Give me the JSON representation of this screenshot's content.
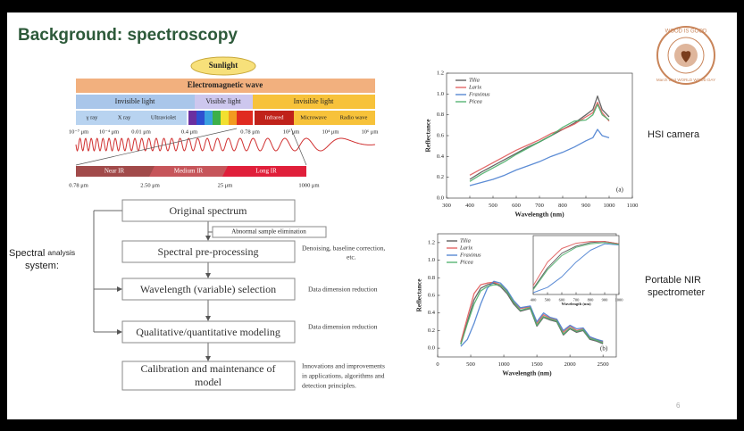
{
  "title": "Background: spectroscopy",
  "logo": {
    "top": "WOOD IS GOOD",
    "bottom": "March 21st WORLD WOOD DAY"
  },
  "spectrum": {
    "source": "Sunlight",
    "band": "Electromagnetic wave",
    "groups": [
      "Invisible light",
      "Visible light",
      "Invisible light"
    ],
    "regions": [
      "γ ray",
      "X ray",
      "Ultraviolet",
      "Infrared",
      "Microwave",
      "Radio wave"
    ],
    "scale": [
      "10⁻⁷ μm",
      "10⁻⁴ μm",
      "0.01 μm",
      "0.4 μm",
      "0.78 μm",
      "10² μm",
      "10⁴ μm",
      "10⁶ μm"
    ],
    "ir_bands": [
      "Near IR",
      "Medium IR",
      "Long IR"
    ],
    "ir_scale": [
      "0.78 μm",
      "2.50 μm",
      "25 μm",
      "1000 μm"
    ]
  },
  "side_label": [
    "Spectral",
    "analysis",
    "system:"
  ],
  "flowchart": {
    "steps": [
      "Original spectrum",
      "Spectral pre-processing",
      "Wavelength (variable) selection",
      "Qualitative/quantitative modeling",
      "Calibration and maintenance of",
      "model"
    ],
    "sub_step": "Abnormal sample elimination",
    "notes": [
      "Denoising, baseline correction,",
      "etc.",
      "Data dimension reduction",
      "Data dimension reduction",
      "Innovations and improvements",
      "in applications, algorithms and",
      "detection principles."
    ]
  },
  "device_labels": [
    "HSI camera",
    "Portable NIR",
    "spectrometer"
  ],
  "page_number": "6",
  "chart_data": [
    {
      "type": "line",
      "xlabel": "Wavelength (nm)",
      "ylabel": "Reflectance",
      "annotation": "(a)",
      "legend": "upper left",
      "xlim": [
        300,
        1100
      ],
      "xticks": [
        300,
        400,
        500,
        600,
        700,
        800,
        900,
        1000,
        1100
      ],
      "ylim": [
        0,
        1.2
      ],
      "yticks": [
        {
          "value": 0,
          "label": "0.0"
        },
        0.2,
        0.4,
        0.6,
        0.8,
        {
          "value": 1,
          "label": "1.0"
        },
        1.2
      ],
      "x": [
        400,
        450,
        500,
        550,
        600,
        650,
        700,
        750,
        800,
        850,
        900,
        930,
        950,
        970,
        1000
      ],
      "series": [
        {
          "name": "Tilia",
          "color": "#555555",
          "values": [
            0.18,
            0.25,
            0.31,
            0.37,
            0.43,
            0.49,
            0.54,
            0.6,
            0.66,
            0.72,
            0.8,
            0.85,
            0.98,
            0.85,
            0.78
          ]
        },
        {
          "name": "Larix",
          "color": "#e05a5a",
          "values": [
            0.22,
            0.28,
            0.34,
            0.4,
            0.46,
            0.51,
            0.56,
            0.62,
            0.66,
            0.71,
            0.78,
            0.82,
            0.92,
            0.82,
            0.74
          ]
        },
        {
          "name": "Fraxinus",
          "color": "#4a7fd0",
          "values": [
            0.12,
            0.15,
            0.18,
            0.22,
            0.27,
            0.31,
            0.35,
            0.4,
            0.44,
            0.49,
            0.55,
            0.58,
            0.66,
            0.6,
            0.58
          ]
        },
        {
          "name": "Picea",
          "color": "#4caf6a",
          "values": [
            0.16,
            0.23,
            0.29,
            0.35,
            0.42,
            0.48,
            0.54,
            0.6,
            0.68,
            0.74,
            0.75,
            0.8,
            0.9,
            0.8,
            0.75
          ]
        }
      ]
    },
    {
      "type": "line",
      "xlabel": "Wavelength (nm)",
      "ylabel": "Reflectance",
      "annotation": "(b)",
      "legend": "upper left",
      "xlim": [
        0,
        2700
      ],
      "xticks": [
        0,
        500,
        1000,
        1500,
        2000,
        2500
      ],
      "ylim": [
        -0.1,
        1.3
      ],
      "yticks": [
        {
          "value": 0,
          "label": "0.0"
        },
        0.2,
        0.4,
        0.6,
        0.8,
        {
          "value": 1,
          "label": "1.0"
        },
        1.2
      ],
      "x": [
        350,
        450,
        550,
        650,
        750,
        850,
        950,
        1050,
        1150,
        1250,
        1400,
        1500,
        1600,
        1700,
        1800,
        1900,
        2000,
        2100,
        2200,
        2300,
        2400,
        2500
      ],
      "series": [
        {
          "name": "Tilia",
          "color": "#555555",
          "values": [
            0.05,
            0.3,
            0.55,
            0.68,
            0.72,
            0.74,
            0.7,
            0.62,
            0.5,
            0.42,
            0.45,
            0.25,
            0.35,
            0.32,
            0.3,
            0.15,
            0.22,
            0.18,
            0.2,
            0.1,
            0.08,
            0.05
          ]
        },
        {
          "name": "Larix",
          "color": "#e05a5a",
          "values": [
            0.07,
            0.35,
            0.62,
            0.72,
            0.74,
            0.75,
            0.72,
            0.65,
            0.52,
            0.45,
            0.47,
            0.28,
            0.38,
            0.34,
            0.32,
            0.18,
            0.25,
            0.2,
            0.22,
            0.12,
            0.1,
            0.07
          ]
        },
        {
          "name": "Fraxinus",
          "color": "#4a7fd0",
          "values": [
            0.02,
            0.1,
            0.28,
            0.5,
            0.68,
            0.76,
            0.74,
            0.66,
            0.54,
            0.46,
            0.48,
            0.3,
            0.4,
            0.35,
            0.33,
            0.2,
            0.26,
            0.22,
            0.23,
            0.13,
            0.1,
            0.08
          ]
        },
        {
          "name": "Picea",
          "color": "#4caf6a",
          "values": [
            0.04,
            0.28,
            0.5,
            0.65,
            0.7,
            0.72,
            0.72,
            0.64,
            0.52,
            0.43,
            0.46,
            0.26,
            0.36,
            0.33,
            0.31,
            0.16,
            0.23,
            0.19,
            0.21,
            0.11,
            0.09,
            0.06
          ]
        }
      ]
    },
    {
      "type": "line",
      "xlabel": "Wavelength (nm)",
      "xlim": [
        400,
        1000
      ],
      "xticks": [
        400,
        500,
        600,
        700,
        800,
        900,
        1000
      ],
      "ylim": [
        0,
        1
      ],
      "x": [
        400,
        500,
        600,
        700,
        800,
        900,
        1000
      ],
      "series": [
        {
          "color": "#555555",
          "values": [
            0.1,
            0.45,
            0.7,
            0.82,
            0.88,
            0.9,
            0.86
          ]
        },
        {
          "color": "#e05a5a",
          "values": [
            0.15,
            0.55,
            0.78,
            0.87,
            0.9,
            0.9,
            0.86
          ]
        },
        {
          "color": "#4a7fd0",
          "values": [
            0.03,
            0.12,
            0.3,
            0.55,
            0.75,
            0.86,
            0.84
          ]
        },
        {
          "color": "#4caf6a",
          "values": [
            0.08,
            0.42,
            0.66,
            0.8,
            0.86,
            0.88,
            0.85
          ]
        }
      ]
    }
  ]
}
